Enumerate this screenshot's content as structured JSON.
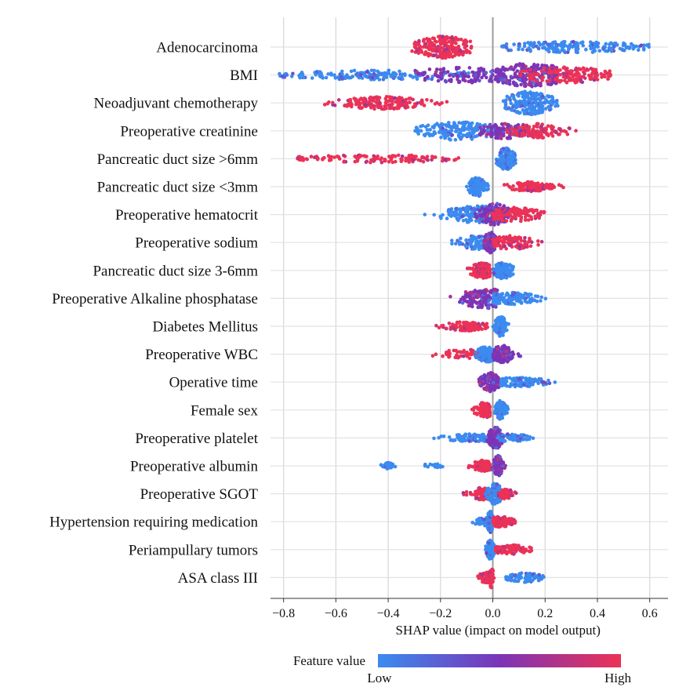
{
  "chart_data": {
    "type": "scatter",
    "subtype": "shap-beeswarm",
    "xlabel": "SHAP value (impact on model output)",
    "xlim": [
      -0.85,
      0.67
    ],
    "x_ticks": [
      -0.8,
      -0.6,
      -0.4,
      -0.2,
      0.0,
      0.2,
      0.4,
      0.6
    ],
    "x_tick_labels": [
      "−0.8",
      "−0.6",
      "−0.4",
      "−0.2",
      "0.0",
      "0.2",
      "0.4",
      "0.6"
    ],
    "grid": "vertical",
    "legend": {
      "title": "Feature value",
      "low_label": "Low",
      "high_label": "High",
      "position": "bottom"
    },
    "colors": {
      "low": "#3b8bf0",
      "mid": "#7b34b8",
      "high": "#ec3256",
      "grid": "#d9d9d9",
      "zero_line": "#9c9c9c"
    },
    "features": [
      {
        "name": "Adenocarcinoma",
        "clusters": [
          {
            "c": -0.19,
            "spread": 0.06,
            "h": 14,
            "lo": -0.31,
            "hi": -0.08,
            "color": "high",
            "n": 220
          },
          {
            "c": 0.3,
            "spread": 0.16,
            "h": 7,
            "lo": 0.03,
            "hi": 0.6,
            "color": "low",
            "n": 190
          }
        ]
      },
      {
        "name": "BMI",
        "clusters": [
          {
            "c": -0.45,
            "spread": 0.2,
            "h": 6,
            "lo": -0.82,
            "hi": -0.05,
            "color": "low",
            "n": 170
          },
          {
            "c": -0.1,
            "spread": 0.12,
            "h": 10,
            "lo": -0.3,
            "hi": 0.05,
            "color": "mid",
            "n": 140
          },
          {
            "c": 0.14,
            "spread": 0.08,
            "h": 15,
            "lo": 0.02,
            "hi": 0.25,
            "color": "mid",
            "n": 200
          },
          {
            "c": 0.28,
            "spread": 0.1,
            "h": 10,
            "lo": 0.1,
            "hi": 0.45,
            "color": "high",
            "n": 160
          }
        ]
      },
      {
        "name": "Neoadjuvant chemotherapy",
        "clusters": [
          {
            "c": -0.42,
            "spread": 0.09,
            "h": 8,
            "lo": -0.65,
            "hi": -0.14,
            "color": "high",
            "n": 180
          },
          {
            "c": 0.14,
            "spread": 0.05,
            "h": 15,
            "lo": 0.04,
            "hi": 0.25,
            "color": "low",
            "n": 220
          }
        ]
      },
      {
        "name": "Preoperative creatinine",
        "clusters": [
          {
            "c": -0.14,
            "spread": 0.08,
            "h": 12,
            "lo": -0.31,
            "hi": 0.02,
            "color": "low",
            "n": 170
          },
          {
            "c": 0.05,
            "spread": 0.06,
            "h": 10,
            "lo": -0.05,
            "hi": 0.15,
            "color": "mid",
            "n": 140
          },
          {
            "c": 0.18,
            "spread": 0.06,
            "h": 9,
            "lo": 0.05,
            "hi": 0.32,
            "color": "high",
            "n": 120
          }
        ]
      },
      {
        "name": "Pancreatic duct size >6mm",
        "clusters": [
          {
            "c": -0.45,
            "spread": 0.16,
            "h": 5,
            "lo": -0.75,
            "hi": -0.13,
            "color": "high",
            "n": 130
          },
          {
            "c": 0.05,
            "spread": 0.018,
            "h": 14,
            "lo": 0.0,
            "hi": 0.09,
            "color": "low",
            "n": 160
          }
        ]
      },
      {
        "name": "Pancreatic duct size <3mm",
        "clusters": [
          {
            "c": -0.06,
            "spread": 0.018,
            "h": 13,
            "lo": -0.11,
            "hi": -0.01,
            "color": "low",
            "n": 150
          },
          {
            "c": 0.15,
            "spread": 0.05,
            "h": 6,
            "lo": 0.04,
            "hi": 0.27,
            "color": "high",
            "n": 130
          }
        ]
      },
      {
        "name": "Preoperative hematocrit",
        "clusters": [
          {
            "c": -0.06,
            "spread": 0.07,
            "h": 11,
            "lo": -0.28,
            "hi": 0.05,
            "color": "low",
            "n": 170
          },
          {
            "c": 0.01,
            "spread": 0.035,
            "h": 14,
            "lo": -0.08,
            "hi": 0.1,
            "color": "mid",
            "n": 150
          },
          {
            "c": 0.08,
            "spread": 0.06,
            "h": 9,
            "lo": 0.0,
            "hi": 0.2,
            "color": "high",
            "n": 120
          }
        ]
      },
      {
        "name": "Preoperative sodium",
        "clusters": [
          {
            "c": -0.06,
            "spread": 0.04,
            "h": 9,
            "lo": -0.16,
            "hi": 0.0,
            "color": "low",
            "n": 110
          },
          {
            "c": -0.01,
            "spread": 0.012,
            "h": 14,
            "lo": -0.04,
            "hi": 0.02,
            "color": "mid",
            "n": 110
          },
          {
            "c": 0.07,
            "spread": 0.045,
            "h": 9,
            "lo": 0.0,
            "hi": 0.19,
            "color": "high",
            "n": 110
          }
        ]
      },
      {
        "name": "Pancreatic duct size 3-6mm",
        "clusters": [
          {
            "c": -0.04,
            "spread": 0.025,
            "h": 10,
            "lo": -0.12,
            "hi": -0.01,
            "color": "high",
            "n": 120
          },
          {
            "c": 0.04,
            "spread": 0.02,
            "h": 11,
            "lo": 0.0,
            "hi": 0.12,
            "color": "low",
            "n": 120
          }
        ]
      },
      {
        "name": "Preoperative Alkaline phosphatase",
        "clusters": [
          {
            "c": -0.03,
            "spread": 0.05,
            "h": 13,
            "lo": -0.18,
            "hi": 0.02,
            "color": "mid",
            "n": 170
          },
          {
            "c": 0.06,
            "spread": 0.06,
            "h": 8,
            "lo": 0.0,
            "hi": 0.25,
            "color": "low",
            "n": 150
          }
        ]
      },
      {
        "name": "Diabetes Mellitus",
        "clusters": [
          {
            "c": -0.1,
            "spread": 0.045,
            "h": 6,
            "lo": -0.22,
            "hi": -0.02,
            "color": "high",
            "n": 120
          },
          {
            "c": 0.03,
            "spread": 0.012,
            "h": 13,
            "lo": 0.0,
            "hi": 0.08,
            "color": "low",
            "n": 120
          }
        ]
      },
      {
        "name": "Preoperative WBC",
        "clusters": [
          {
            "c": -0.1,
            "spread": 0.06,
            "h": 6,
            "lo": -0.3,
            "hi": 0.0,
            "color": "high",
            "n": 70
          },
          {
            "c": -0.02,
            "spread": 0.025,
            "h": 10,
            "lo": -0.08,
            "hi": 0.02,
            "color": "low",
            "n": 110
          },
          {
            "c": 0.04,
            "spread": 0.025,
            "h": 11,
            "lo": 0.0,
            "hi": 0.11,
            "color": "mid",
            "n": 110
          }
        ]
      },
      {
        "name": "Operative time",
        "clusters": [
          {
            "c": -0.01,
            "spread": 0.02,
            "h": 12,
            "lo": -0.1,
            "hi": 0.03,
            "color": "mid",
            "n": 130
          },
          {
            "c": 0.1,
            "spread": 0.06,
            "h": 6,
            "lo": 0.03,
            "hi": 0.25,
            "color": "low",
            "n": 130
          }
        ]
      },
      {
        "name": "Female sex",
        "clusters": [
          {
            "c": -0.03,
            "spread": 0.02,
            "h": 10,
            "lo": -0.12,
            "hi": -0.01,
            "color": "high",
            "n": 110
          },
          {
            "c": 0.03,
            "spread": 0.012,
            "h": 12,
            "lo": 0.0,
            "hi": 0.07,
            "color": "low",
            "n": 110
          }
        ]
      },
      {
        "name": "Preoperative platelet",
        "clusters": [
          {
            "c": -0.07,
            "spread": 0.06,
            "h": 5,
            "lo": -0.23,
            "hi": -0.01,
            "color": "low",
            "n": 90
          },
          {
            "c": 0.01,
            "spread": 0.015,
            "h": 14,
            "lo": -0.03,
            "hi": 0.05,
            "color": "mid",
            "n": 120
          },
          {
            "c": 0.07,
            "spread": 0.04,
            "h": 5,
            "lo": 0.02,
            "hi": 0.18,
            "color": "low",
            "n": 70
          }
        ]
      },
      {
        "name": "Preoperative albumin",
        "clusters": [
          {
            "c": -0.4,
            "spread": 0.012,
            "h": 4,
            "lo": -0.44,
            "hi": -0.36,
            "color": "low",
            "n": 40
          },
          {
            "c": -0.23,
            "spread": 0.02,
            "h": 3,
            "lo": -0.26,
            "hi": -0.19,
            "color": "low",
            "n": 18
          },
          {
            "c": -0.04,
            "spread": 0.025,
            "h": 7,
            "lo": -0.1,
            "hi": -0.01,
            "color": "high",
            "n": 80
          },
          {
            "c": 0.02,
            "spread": 0.01,
            "h": 13,
            "lo": -0.01,
            "hi": 0.05,
            "color": "mid",
            "n": 110
          }
        ]
      },
      {
        "name": "Preoperative SGOT",
        "clusters": [
          {
            "c": -0.04,
            "spread": 0.025,
            "h": 8,
            "lo": -0.12,
            "hi": 0.0,
            "color": "high",
            "n": 80
          },
          {
            "c": 0.01,
            "spread": 0.015,
            "h": 14,
            "lo": -0.03,
            "hi": 0.05,
            "color": "low",
            "n": 120
          },
          {
            "c": 0.05,
            "spread": 0.015,
            "h": 7,
            "lo": 0.02,
            "hi": 0.09,
            "color": "high",
            "n": 60
          }
        ]
      },
      {
        "name": "Hypertension requiring medication",
        "clusters": [
          {
            "c": -0.03,
            "spread": 0.025,
            "h": 5,
            "lo": -0.14,
            "hi": -0.01,
            "color": "low",
            "n": 60
          },
          {
            "c": -0.01,
            "spread": 0.006,
            "h": 14,
            "lo": -0.02,
            "hi": 0.0,
            "color": "low",
            "n": 70
          },
          {
            "c": 0.03,
            "spread": 0.025,
            "h": 7,
            "lo": 0.0,
            "hi": 0.1,
            "color": "high",
            "n": 90
          }
        ]
      },
      {
        "name": "Periampullary tumors",
        "clusters": [
          {
            "c": -0.01,
            "spread": 0.008,
            "h": 13,
            "lo": -0.05,
            "hi": 0.01,
            "color": "low",
            "n": 80
          },
          {
            "c": 0.07,
            "spread": 0.04,
            "h": 6,
            "lo": 0.01,
            "hi": 0.16,
            "color": "high",
            "n": 110
          }
        ]
      },
      {
        "name": "ASA class III",
        "clusters": [
          {
            "c": -0.02,
            "spread": 0.02,
            "h": 7,
            "lo": -0.11,
            "hi": 0.0,
            "color": "high",
            "n": 80
          },
          {
            "c": -0.005,
            "spread": 0.004,
            "h": 14,
            "lo": -0.01,
            "hi": 0.005,
            "color": "high",
            "n": 40
          },
          {
            "c": 0.12,
            "spread": 0.04,
            "h": 6,
            "lo": 0.05,
            "hi": 0.2,
            "color": "low",
            "n": 80
          }
        ]
      }
    ]
  }
}
